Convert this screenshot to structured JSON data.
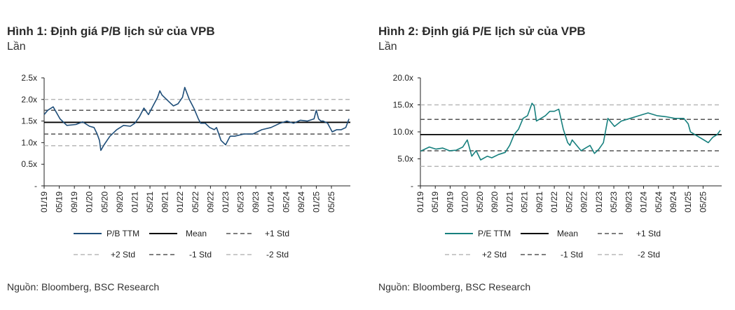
{
  "charts": [
    {
      "title": "Hình 1: Định giá P/B lịch sử của VPB",
      "subtitle": "Lần",
      "source": "Nguồn: Bloomberg, BSC Research",
      "chart_data": {
        "type": "line",
        "ylabel": "Lần",
        "ylim": [
          0,
          2.5
        ],
        "yticks": [
          0,
          0.5,
          1.0,
          1.5,
          2.0,
          2.5
        ],
        "ytick_labels": [
          "-",
          "0.5x",
          "1.0x",
          "1.5x",
          "2.0x",
          "2.5x"
        ],
        "x_range": [
          2019.0,
          2025.75
        ],
        "xtick_labels": [
          "01/19",
          "05/19",
          "09/19",
          "01/20",
          "05/20",
          "09/20",
          "01/21",
          "05/21",
          "09/21",
          "01/22",
          "05/22",
          "09/22",
          "01/23",
          "05/23",
          "09/23",
          "01/24",
          "05/24",
          "09/24",
          "01/25",
          "05/25"
        ],
        "series": [
          {
            "name": "P/B TTM",
            "color": "#1f4e79",
            "style": "solid",
            "x": [
              2019.0,
              2019.08,
              2019.2,
              2019.35,
              2019.5,
              2019.7,
              2019.85,
              2020.0,
              2020.1,
              2020.17,
              2020.22,
              2020.25,
              2020.32,
              2020.45,
              2020.6,
              2020.75,
              2020.9,
              2021.0,
              2021.1,
              2021.2,
              2021.3,
              2021.4,
              2021.5,
              2021.55,
              2021.6,
              2021.75,
              2021.85,
              2021.95,
              2022.05,
              2022.1,
              2022.2,
              2022.3,
              2022.4,
              2022.45,
              2022.55,
              2022.65,
              2022.75,
              2022.8,
              2022.9,
              2023.0,
              2023.1,
              2023.2,
              2023.4,
              2023.6,
              2023.8,
              2024.0,
              2024.2,
              2024.35,
              2024.5,
              2024.65,
              2024.8,
              2024.95,
              2025.0,
              2025.05,
              2025.1,
              2025.15,
              2025.25,
              2025.35,
              2025.45,
              2025.55,
              2025.65,
              2025.72
            ],
            "values": [
              1.65,
              1.75,
              1.83,
              1.55,
              1.4,
              1.42,
              1.48,
              1.38,
              1.35,
              1.2,
              1.05,
              0.82,
              0.95,
              1.15,
              1.3,
              1.4,
              1.38,
              1.45,
              1.6,
              1.8,
              1.65,
              1.85,
              2.05,
              2.2,
              2.1,
              1.95,
              1.85,
              1.9,
              2.05,
              2.28,
              2.0,
              1.8,
              1.55,
              1.45,
              1.45,
              1.35,
              1.3,
              1.35,
              1.05,
              0.95,
              1.15,
              1.15,
              1.2,
              1.2,
              1.3,
              1.35,
              1.45,
              1.5,
              1.45,
              1.52,
              1.5,
              1.55,
              1.75,
              1.55,
              1.5,
              1.5,
              1.45,
              1.25,
              1.3,
              1.3,
              1.35,
              1.55
            ]
          },
          {
            "name": "Mean",
            "color": "#000000",
            "style": "solid",
            "value": 1.47
          },
          {
            "name": "+1 Std",
            "color": "#555555",
            "style": "dash",
            "value": 1.75
          },
          {
            "name": "+2 Std",
            "color": "#b8b8b8",
            "style": "dash",
            "value": 2.0
          },
          {
            "name": "-1 Std",
            "color": "#555555",
            "style": "dash",
            "value": 1.2
          },
          {
            "name": "-2 Std",
            "color": "#b8b8b8",
            "style": "dash",
            "value": 0.93
          }
        ]
      }
    },
    {
      "title": "Hình 2: Định giá P/E lịch sử của VPB",
      "subtitle": "Lần",
      "source": "Nguồn: Bloomberg, BSC Research",
      "chart_data": {
        "type": "line",
        "ylabel": "Lần",
        "ylim": [
          0,
          20
        ],
        "yticks": [
          0,
          5,
          10,
          15,
          20
        ],
        "ytick_labels": [
          "-",
          "5.0x",
          "10.0x",
          "15.0x",
          "20.0x"
        ],
        "x_range": [
          2019.0,
          2025.75
        ],
        "xtick_labels": [
          "01/19",
          "05/19",
          "09/19",
          "01/20",
          "05/20",
          "09/20",
          "01/21",
          "05/21",
          "09/21",
          "01/22",
          "05/22",
          "09/22",
          "01/23",
          "05/23",
          "09/23",
          "01/24",
          "05/24",
          "09/24",
          "01/25",
          "05/25"
        ],
        "series": [
          {
            "name": "P/E TTM",
            "color": "#17807e",
            "style": "solid",
            "x": [
              2019.0,
              2019.1,
              2019.2,
              2019.35,
              2019.5,
              2019.65,
              2019.8,
              2019.95,
              2020.05,
              2020.15,
              2020.25,
              2020.35,
              2020.5,
              2020.6,
              2020.75,
              2020.9,
              2021.0,
              2021.1,
              2021.2,
              2021.3,
              2021.4,
              2021.5,
              2021.55,
              2021.6,
              2021.7,
              2021.8,
              2021.9,
              2022.0,
              2022.1,
              2022.2,
              2022.3,
              2022.35,
              2022.4,
              2022.5,
              2022.6,
              2022.7,
              2022.8,
              2022.9,
              2023.0,
              2023.1,
              2023.2,
              2023.3,
              2023.35,
              2023.5,
              2023.7,
              2023.9,
              2024.1,
              2024.3,
              2024.5,
              2024.7,
              2024.9,
              2025.0,
              2025.05,
              2025.15,
              2025.25,
              2025.35,
              2025.45,
              2025.55,
              2025.65,
              2025.72
            ],
            "values": [
              6.4,
              6.8,
              7.2,
              6.8,
              7.0,
              6.5,
              6.6,
              7.2,
              8.5,
              5.5,
              6.5,
              4.8,
              5.5,
              5.2,
              5.8,
              6.2,
              7.5,
              9.5,
              10.5,
              12.5,
              13.0,
              15.3,
              14.8,
              12.0,
              12.5,
              13.0,
              13.8,
              13.8,
              14.2,
              10.5,
              8.0,
              7.5,
              8.5,
              7.5,
              6.5,
              7.0,
              7.5,
              6.0,
              6.8,
              8.0,
              12.5,
              11.5,
              11.0,
              12.0,
              12.5,
              13.0,
              13.5,
              13.0,
              12.8,
              12.5,
              12.5,
              11.5,
              10.0,
              9.5,
              9.0,
              8.5,
              8.0,
              9.0,
              9.5,
              10.3
            ]
          },
          {
            "name": "Mean",
            "color": "#000000",
            "style": "solid",
            "value": 9.5
          },
          {
            "name": "+1 Std",
            "color": "#555555",
            "style": "dash",
            "value": 12.3
          },
          {
            "name": "+2 Std",
            "color": "#b8b8b8",
            "style": "dash",
            "value": 15.0
          },
          {
            "name": "-1 Std",
            "color": "#555555",
            "style": "dash",
            "value": 6.5
          },
          {
            "name": "-2 Std",
            "color": "#b8b8b8",
            "style": "dash",
            "value": 3.6
          }
        ]
      }
    }
  ]
}
